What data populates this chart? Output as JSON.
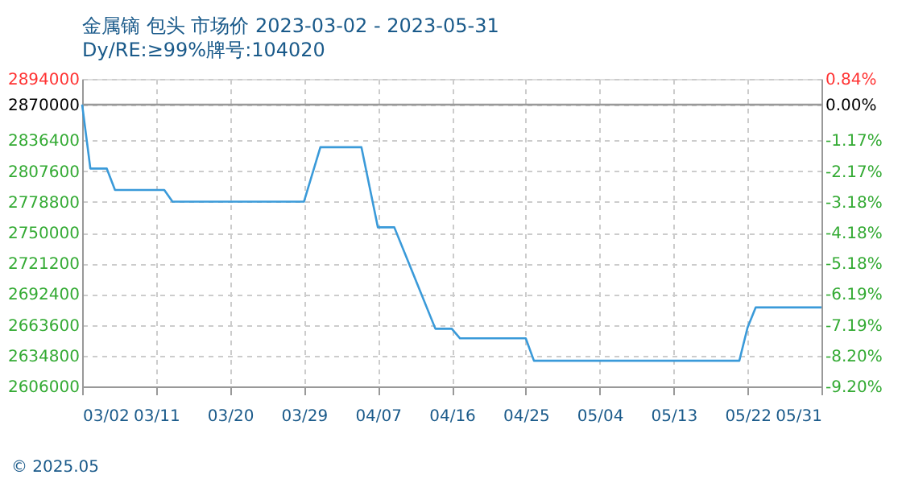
{
  "chart_data": {
    "type": "line",
    "title": "金属镝 包头 市场价 2023-03-02 - 2023-05-31",
    "subtitle": "Dy/RE:≥99%牌号:104020",
    "x": [
      "2023-03-02",
      "2023-03-03",
      "2023-03-05",
      "2023-03-06",
      "2023-03-12",
      "2023-03-13",
      "2023-03-29",
      "2023-03-31",
      "2023-04-05",
      "2023-04-07",
      "2023-04-09",
      "2023-04-14",
      "2023-04-16",
      "2023-04-17",
      "2023-04-25",
      "2023-04-26",
      "2023-05-21",
      "2023-05-22",
      "2023-05-23",
      "2023-05-31"
    ],
    "series": [
      {
        "color": "#3a9ad9",
        "values": [
          2870000,
          2810000,
          2810000,
          2790000,
          2790000,
          2779000,
          2779000,
          2830000,
          2830000,
          2755000,
          2755000,
          2660000,
          2660000,
          2651000,
          2651000,
          2630000,
          2630000,
          2661000,
          2680000,
          2680000
        ]
      }
    ],
    "xlim": [
      "2023-03-02",
      "2023-05-31"
    ],
    "xticks": [
      {
        "value": "2023-03-02",
        "label": "03/02"
      },
      {
        "value": "2023-03-11",
        "label": "03/11"
      },
      {
        "value": "2023-03-20",
        "label": "03/20"
      },
      {
        "value": "2023-03-29",
        "label": "03/29"
      },
      {
        "value": "2023-04-07",
        "label": "04/07"
      },
      {
        "value": "2023-04-16",
        "label": "04/16"
      },
      {
        "value": "2023-04-25",
        "label": "04/25"
      },
      {
        "value": "2023-05-04",
        "label": "05/04"
      },
      {
        "value": "2023-05-13",
        "label": "05/13"
      },
      {
        "value": "2023-05-22",
        "label": "05/22"
      },
      {
        "value": "2023-05-31",
        "label": "05/31"
      }
    ],
    "ylim": [
      2606000,
      2894000
    ],
    "yticks": [
      2606000,
      2634800,
      2663600,
      2692400,
      2721200,
      2750000,
      2778800,
      2807600,
      2836400,
      2870000,
      2894000
    ],
    "y2lim": [
      -9.2,
      0.84
    ],
    "y2ticks": [
      {
        "value": -9.2,
        "label": "-9.20%"
      },
      {
        "value": -8.2,
        "label": "-8.20%"
      },
      {
        "value": -7.19,
        "label": "-7.19%"
      },
      {
        "value": -6.19,
        "label": "-6.19%"
      },
      {
        "value": -5.18,
        "label": "-5.18%"
      },
      {
        "value": -4.18,
        "label": "-4.18%"
      },
      {
        "value": -3.18,
        "label": "-3.18%"
      },
      {
        "value": -2.17,
        "label": "-2.17%"
      },
      {
        "value": -1.17,
        "label": "-1.17%"
      },
      {
        "value": 0,
        "label": "0.00%"
      },
      {
        "value": 0.84,
        "label": "0.84%"
      }
    ],
    "ref_lines": [
      {
        "axis": "y2",
        "value": 0,
        "color": "#999999",
        "line_style": "solid"
      }
    ],
    "grid": true,
    "marker": "none",
    "line_style": "solid",
    "annotations": [
      "© 2025.05"
    ]
  }
}
